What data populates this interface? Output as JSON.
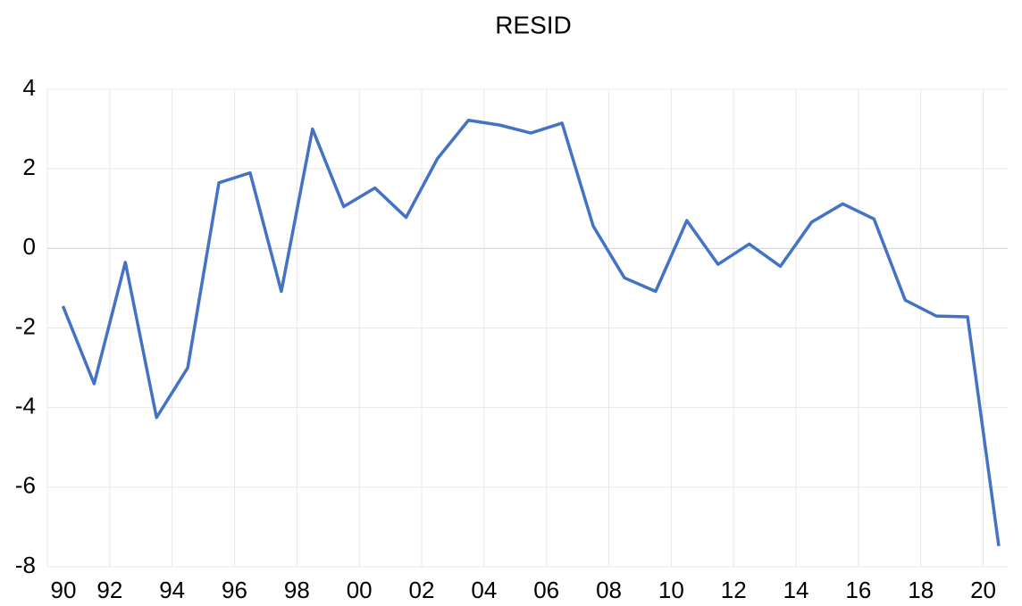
{
  "chart_data": {
    "type": "line",
    "title": "RESID",
    "x": [
      1990.5,
      1991.5,
      1992.5,
      1993.5,
      1994.5,
      1995.5,
      1996.5,
      1997.5,
      1998.5,
      1999.5,
      2000.5,
      2001.5,
      2002.5,
      2003.5,
      2004.5,
      2005.5,
      2006.5,
      2007.5,
      2008.5,
      2009.5,
      2010.5,
      2011.5,
      2012.5,
      2013.5,
      2014.5,
      2015.5,
      2016.5,
      2017.5,
      2018.5,
      2019.5,
      2020.5
    ],
    "series": [
      {
        "name": "RESID",
        "color": "#4472c4",
        "values": [
          -1.45,
          -3.4,
          -0.35,
          -4.25,
          -3.0,
          1.65,
          1.9,
          -1.08,
          3.0,
          1.05,
          1.52,
          0.78,
          2.25,
          3.22,
          3.1,
          2.9,
          3.15,
          0.56,
          -0.74,
          -1.08,
          0.7,
          -0.4,
          0.11,
          -0.45,
          0.66,
          1.12,
          0.74,
          -1.3,
          -1.7,
          -1.72,
          -7.48
        ]
      }
    ],
    "xlim": [
      1990,
      2020.5
    ],
    "xticks": [
      {
        "value": 1990,
        "label": "90"
      },
      {
        "value": 1992,
        "label": "92"
      },
      {
        "value": 1994,
        "label": "94"
      },
      {
        "value": 1996,
        "label": "96"
      },
      {
        "value": 1998,
        "label": "98"
      },
      {
        "value": 2000,
        "label": "00"
      },
      {
        "value": 2002,
        "label": "02"
      },
      {
        "value": 2004,
        "label": "04"
      },
      {
        "value": 2006,
        "label": "06"
      },
      {
        "value": 2008,
        "label": "08"
      },
      {
        "value": 2010,
        "label": "10"
      },
      {
        "value": 2012,
        "label": "12"
      },
      {
        "value": 2014,
        "label": "14"
      },
      {
        "value": 2016,
        "label": "16"
      },
      {
        "value": 2018,
        "label": "18"
      },
      {
        "value": 2020,
        "label": "20"
      }
    ],
    "ylim": [
      -8,
      4
    ],
    "yticks": [
      -8,
      -6,
      -4,
      -2,
      0,
      2,
      4
    ],
    "grid": true
  }
}
